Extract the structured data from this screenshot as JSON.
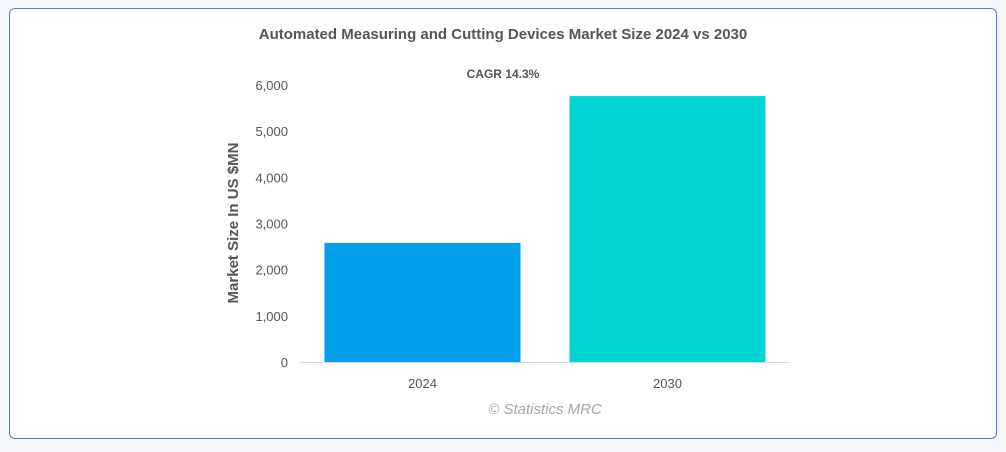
{
  "chart_data": {
    "type": "bar",
    "title": "Automated Measuring and Cutting Devices Market Size 2024 vs 2030",
    "subtitle": "CAGR 14.3%",
    "xlabel": "",
    "ylabel": "Market Size In US $MN",
    "categories": [
      "2024",
      "2030"
    ],
    "values": [
      2580,
      5760
    ],
    "colors": [
      "#03a0ea",
      "#00d4d4"
    ],
    "ylim": [
      0,
      6000
    ],
    "yticks": [
      0,
      1000,
      2000,
      3000,
      4000,
      5000,
      6000
    ],
    "ytick_labels": [
      "0",
      "1,000",
      "2,000",
      "3,000",
      "4,000",
      "5,000",
      "6,000"
    ],
    "grid": false,
    "legend": "none"
  },
  "watermark": "© Statistics MRC"
}
